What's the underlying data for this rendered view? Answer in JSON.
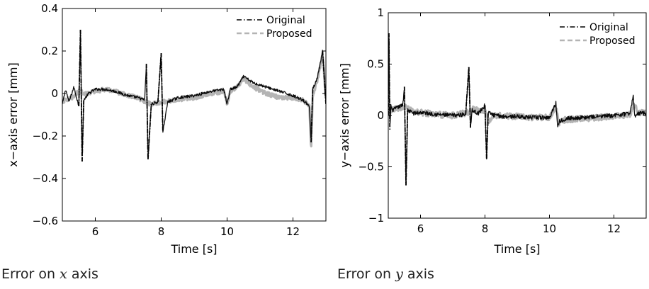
{
  "chart_data": [
    {
      "type": "line",
      "xlabel": "Time [s]",
      "ylabel": "x−axis error [mm]",
      "xlim": [
        5,
        13
      ],
      "ylim": [
        -0.6,
        0.4
      ],
      "xticks": [
        {
          "value": 6,
          "label": "6"
        },
        {
          "value": 8,
          "label": "8"
        },
        {
          "value": 10,
          "label": "10"
        },
        {
          "value": 12,
          "label": "12"
        }
      ],
      "yticks": [
        {
          "value": 0.4,
          "label": "0.4"
        },
        {
          "value": 0.2,
          "label": "0.2"
        },
        {
          "value": 0,
          "label": "0"
        },
        {
          "value": -0.2,
          "label": "−0.2"
        },
        {
          "value": -0.4,
          "label": "−0.4"
        },
        {
          "value": -0.6,
          "label": "−0.6"
        }
      ],
      "grid": false,
      "legend": "top-right",
      "caption": {
        "prefix": "Error on ",
        "variable": "x",
        "suffix": " axis"
      },
      "series": [
        {
          "name": "Original",
          "color": "#000000",
          "style": "dash-dot",
          "x": [
            5.0,
            5.1,
            5.2,
            5.35,
            5.5,
            5.55,
            5.6,
            5.65,
            5.8,
            6.0,
            6.3,
            6.6,
            7.0,
            7.3,
            7.5,
            7.55,
            7.6,
            7.7,
            7.9,
            8.0,
            8.05,
            8.2,
            8.5,
            9.0,
            9.5,
            9.9,
            10.0,
            10.1,
            10.3,
            10.5,
            10.8,
            11.2,
            11.6,
            12.0,
            12.3,
            12.5,
            12.55,
            12.6,
            12.75,
            12.9,
            13.0
          ],
          "y": [
            -0.05,
            0.02,
            -0.04,
            0.03,
            -0.06,
            0.3,
            -0.32,
            -0.03,
            0.0,
            0.02,
            0.02,
            0.01,
            -0.01,
            -0.02,
            -0.03,
            0.14,
            -0.31,
            -0.05,
            -0.04,
            0.19,
            -0.18,
            -0.04,
            -0.02,
            -0.01,
            0.01,
            0.02,
            -0.05,
            0.02,
            0.03,
            0.08,
            0.05,
            0.03,
            0.01,
            -0.01,
            -0.03,
            -0.06,
            -0.23,
            0.02,
            0.08,
            0.2,
            -0.05
          ]
        },
        {
          "name": "Proposed",
          "color": "#b4b4b4",
          "style": "dashed",
          "x": [
            5.0,
            5.1,
            5.3,
            5.5,
            5.7,
            6.0,
            6.3,
            6.6,
            7.0,
            7.3,
            7.5,
            7.7,
            8.0,
            8.5,
            9.0,
            9.5,
            9.9,
            10.0,
            10.1,
            10.3,
            10.5,
            10.8,
            11.2,
            11.6,
            12.0,
            12.3,
            12.5,
            12.55,
            12.6,
            12.75,
            12.9,
            13.0
          ],
          "y": [
            -0.04,
            -0.03,
            -0.02,
            0.01,
            0.0,
            0.01,
            0.02,
            0.01,
            -0.01,
            -0.02,
            -0.04,
            -0.05,
            -0.04,
            -0.03,
            -0.02,
            0.0,
            0.01,
            -0.05,
            0.01,
            0.03,
            0.07,
            0.03,
            0.0,
            -0.02,
            -0.02,
            -0.03,
            -0.06,
            -0.27,
            -0.02,
            0.07,
            0.18,
            -0.03
          ]
        }
      ]
    },
    {
      "type": "line",
      "xlabel": "Time [s]",
      "ylabel": "y−axis error [mm]",
      "xlim": [
        5,
        13
      ],
      "ylim": [
        -1,
        1
      ],
      "xticks": [
        {
          "value": 6,
          "label": "6"
        },
        {
          "value": 8,
          "label": "8"
        },
        {
          "value": 10,
          "label": "10"
        },
        {
          "value": 12,
          "label": "12"
        }
      ],
      "yticks": [
        {
          "value": 1,
          "label": "1"
        },
        {
          "value": 0.5,
          "label": "0.5"
        },
        {
          "value": 0,
          "label": "0"
        },
        {
          "value": -0.5,
          "label": "−0.5"
        },
        {
          "value": -1,
          "label": "−1"
        }
      ],
      "grid": false,
      "legend": "top-right",
      "caption": {
        "prefix": "Error on ",
        "variable": "y",
        "suffix": " axis"
      },
      "series": [
        {
          "name": "Original",
          "color": "#000000",
          "style": "dash-dot",
          "x": [
            5.0,
            5.02,
            5.05,
            5.08,
            5.12,
            5.3,
            5.45,
            5.5,
            5.55,
            5.6,
            5.8,
            6.0,
            6.5,
            7.0,
            7.4,
            7.5,
            7.55,
            7.6,
            7.8,
            8.0,
            8.05,
            8.1,
            8.3,
            8.6,
            9.0,
            9.5,
            10.0,
            10.2,
            10.25,
            10.3,
            10.5,
            11.0,
            11.5,
            12.0,
            12.5,
            12.6,
            12.65,
            12.7,
            12.85,
            13.0
          ],
          "y": [
            0.0,
            0.8,
            -0.15,
            0.1,
            0.05,
            0.08,
            0.1,
            0.28,
            -0.68,
            0.05,
            0.02,
            0.03,
            0.01,
            0.0,
            0.01,
            0.47,
            -0.12,
            0.05,
            0.02,
            0.1,
            -0.42,
            0.03,
            0.0,
            -0.01,
            -0.01,
            -0.02,
            -0.02,
            0.12,
            -0.1,
            -0.06,
            -0.03,
            -0.02,
            -0.01,
            0.0,
            0.02,
            0.2,
            -0.03,
            0.01,
            0.03,
            0.02
          ]
        },
        {
          "name": "Proposed",
          "color": "#b4b4b4",
          "style": "dashed",
          "x": [
            5.0,
            5.1,
            5.3,
            5.5,
            5.8,
            6.0,
            6.5,
            7.0,
            7.5,
            7.6,
            8.0,
            8.1,
            8.3,
            9.0,
            9.5,
            10.0,
            10.2,
            10.3,
            10.5,
            11.0,
            11.5,
            12.0,
            12.5,
            12.6,
            12.8,
            13.0
          ],
          "y": [
            0.02,
            0.05,
            0.07,
            0.08,
            0.03,
            0.03,
            0.01,
            0.0,
            0.03,
            0.06,
            0.05,
            -0.05,
            0.0,
            -0.01,
            -0.02,
            -0.02,
            0.08,
            -0.07,
            -0.04,
            -0.03,
            -0.02,
            -0.01,
            0.01,
            0.1,
            0.03,
            0.02
          ]
        }
      ]
    }
  ]
}
